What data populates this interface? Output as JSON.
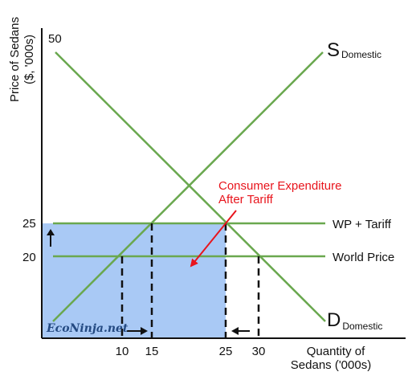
{
  "y_axis": {
    "label_line1": "Price of Sedans",
    "label_line2": "($, '000s)",
    "ticks": [
      "50",
      "25",
      "20"
    ]
  },
  "x_axis": {
    "label_line1": "Quantity of",
    "label_line2": "Sedans ('000s)",
    "ticks": [
      "10",
      "15",
      "25",
      "30"
    ]
  },
  "supply": {
    "main": "S",
    "subscript": "Domestic"
  },
  "demand": {
    "main": "D",
    "subscript": "Domestic"
  },
  "lines": {
    "wp_tariff": "WP + Tariff",
    "world_price": "World Price"
  },
  "annotation": {
    "line1": "Consumer Expenditure",
    "line2": "After Tariff"
  },
  "watermark": "EcoNinja.net",
  "colors": {
    "curves": "#6aa84f",
    "shaded_area": "#a9c9f5",
    "annotation": "#e8141c",
    "axes": "#111111"
  },
  "chart_data": {
    "type": "supply-demand",
    "prices": {
      "world_price": 20,
      "wp_plus_tariff": 25,
      "demand_intercept": 50
    },
    "quantities": {
      "domestic_supply_at_world_price": 10,
      "domestic_supply_after_tariff": 15,
      "demand_after_tariff": 25,
      "demand_at_world_price": 30
    },
    "shaded_region": {
      "price_from": 0,
      "price_to": 25,
      "quantity_from": 0,
      "quantity_to": 25
    },
    "arrows": [
      "price rises from 20 to 25",
      "domestic supply rises from 10 to 15",
      "demand falls from 30 to 25"
    ]
  }
}
